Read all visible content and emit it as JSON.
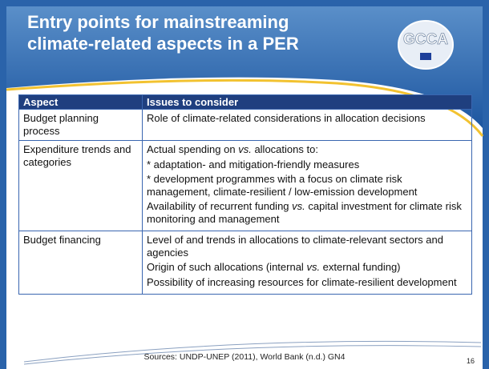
{
  "header": {
    "title_lines": [
      "Entry points for mainstreaming",
      "climate-related aspects in a PER"
    ],
    "logo": "GCCA"
  },
  "table": {
    "columns": [
      "Aspect",
      "Issues to consider"
    ],
    "rows": [
      {
        "aspect": "Budget planning process",
        "issues": [
          [
            {
              "text": "Role of climate-related considerations in allocation decisions"
            }
          ]
        ]
      },
      {
        "aspect": "Expenditure trends and categories",
        "issues": [
          [
            {
              "text": "Actual spending on "
            },
            {
              "text": "vs.",
              "italic": true
            },
            {
              "text": " allocations to:"
            }
          ],
          [
            {
              "text": "* adaptation- and mitigation-friendly measures"
            }
          ],
          [
            {
              "text": "* development programmes with a focus on climate risk management, climate-resilient / low-emission development"
            }
          ],
          [
            {
              "text": "Availability of recurrent funding "
            },
            {
              "text": "vs.",
              "italic": true
            },
            {
              "text": " capital investment for climate risk monitoring and management"
            }
          ]
        ]
      },
      {
        "aspect": "Budget financing",
        "issues": [
          [
            {
              "text": "Level of and trends in allocations to climate-relevant sectors and agencies"
            }
          ],
          [
            {
              "text": "Origin of such allocations (internal "
            },
            {
              "text": "vs.",
              "italic": true
            },
            {
              "text": " external funding)"
            }
          ],
          [
            {
              "text": "Possibility of increasing resources for climate-resilient development"
            }
          ]
        ]
      }
    ]
  },
  "footer": {
    "sources": "Sources: UNDP-UNEP (2011), World Bank (n.d.) GN4",
    "page": "16"
  }
}
